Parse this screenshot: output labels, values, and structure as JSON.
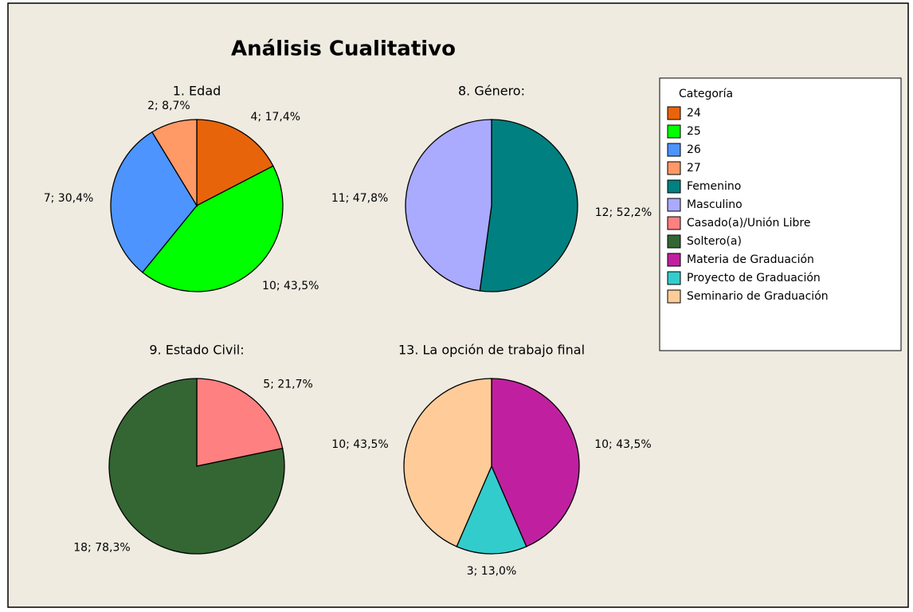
{
  "title": "Análisis Cualitativo",
  "legend_title": "Categoría",
  "chart_data": [
    {
      "type": "pie",
      "title": "1. Edad",
      "categories": [
        "24",
        "25",
        "26",
        "27"
      ],
      "values": [
        4,
        10,
        7,
        2
      ],
      "value_labels": [
        "4; 17,4%",
        "10; 43,5%",
        "7; 30,4%",
        "2; 8,7%"
      ],
      "colors": [
        "#e8640a",
        "#00ff00",
        "#4d94ff",
        "#ff9966"
      ]
    },
    {
      "type": "pie",
      "title": "8. Género:",
      "categories": [
        "Femenino",
        "Masculino"
      ],
      "values": [
        12,
        11
      ],
      "value_labels": [
        "12; 52,2%",
        "11; 47,8%"
      ],
      "colors": [
        "#008080",
        "#aaaaff"
      ]
    },
    {
      "type": "pie",
      "title": "9. Estado Civil:",
      "categories": [
        "Casado(a)/Unión Libre",
        "Soltero(a)"
      ],
      "values": [
        5,
        18
      ],
      "value_labels": [
        "5; 21,7%",
        "18; 78,3%"
      ],
      "colors": [
        "#ff8080",
        "#336633"
      ]
    },
    {
      "type": "pie",
      "title": "13. La opción de trabajo final",
      "categories": [
        "Materia de Graduación",
        "Proyecto de Graduación",
        "Seminario de Graduación"
      ],
      "values": [
        10,
        3,
        10
      ],
      "value_labels": [
        "10; 43,5%",
        "3; 13,0%",
        "10; 43,5%"
      ],
      "colors": [
        "#c020a0",
        "#33cccc",
        "#ffcc99"
      ]
    }
  ]
}
